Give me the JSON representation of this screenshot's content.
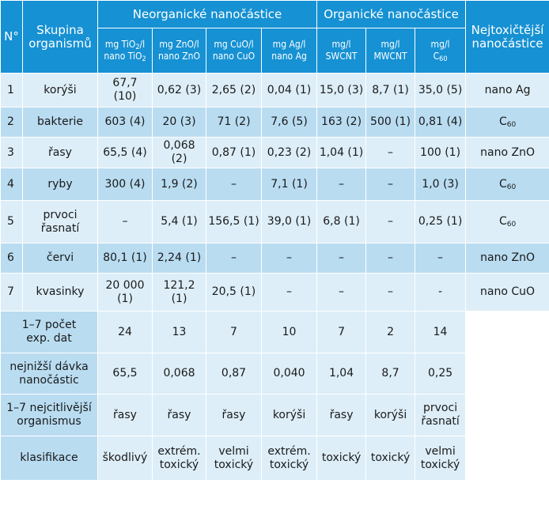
{
  "header": {
    "no": "N°",
    "group": "Skupina organismů",
    "inorganic": "Neorganické nanočástice",
    "organic": "Organické nanočástice",
    "most_toxic": "Nejtoxičtější nanočástice",
    "units": [
      {
        "a": "mg TiO",
        "sub": "2",
        "b": "/l",
        "c": "nano TiO",
        "csub": "2"
      },
      {
        "a": "mg ZnO/l",
        "c": "nano ZnO"
      },
      {
        "a": "mg CuO/l",
        "c": "nano CuO"
      },
      {
        "a": "mg Ag/l",
        "c": "nano Ag"
      },
      {
        "a": "mg/l",
        "c": "SWCNT"
      },
      {
        "a": "mg/l",
        "c": "MWCNT"
      },
      {
        "a": "mg/l",
        "c": "C",
        "csub": "60"
      }
    ]
  },
  "rows": [
    {
      "n": "1",
      "org": "korýši",
      "v": [
        "67,7 (10)",
        "0,62 (3)",
        "2,65 (2)",
        "0,04 (1)",
        "15,0 (3)",
        "8,7 (1)",
        "35,0 (5)"
      ],
      "top": "nano Ag"
    },
    {
      "n": "2",
      "org": "bakterie",
      "v": [
        "603 (4)",
        "20 (3)",
        "71 (2)",
        "7,6 (5)",
        "163 (2)",
        "500 (1)",
        "0,81 (4)"
      ],
      "top": "C",
      "topsub": "60"
    },
    {
      "n": "3",
      "org": "řasy",
      "v": [
        "65,5 (4)",
        "0,068 (2)",
        "0,87 (1)",
        "0,23 (2)",
        "1,04 (1)",
        "–",
        "100 (1)"
      ],
      "top": "nano ZnO"
    },
    {
      "n": "4",
      "org": "ryby",
      "v": [
        "300 (4)",
        "1,9 (2)",
        "–",
        "7,1 (1)",
        "–",
        "–",
        "1,0 (3)"
      ],
      "top": "C",
      "topsub": "60"
    },
    {
      "n": "5",
      "org1": "prvoci",
      "org2": "řasnatí",
      "v": [
        "–",
        "5,4 (1)",
        "156,5 (1)",
        "39,0 (1)",
        "6,8 (1)",
        "–",
        "0,25 (1)"
      ],
      "top": "C",
      "topsub": "60"
    },
    {
      "n": "6",
      "org": "červi",
      "v": [
        "80,1 (1)",
        "2,24 (1)",
        "–",
        "–",
        "–",
        "–",
        "–"
      ],
      "top": "nano ZnO"
    },
    {
      "n": "7",
      "org": "kvasinky",
      "v1": "20 000",
      "v1b": "(1)",
      "v": [
        "",
        "121,2 (1)",
        "20,5 (1)",
        "–",
        "–",
        "–",
        "-"
      ],
      "top": "nano CuO"
    }
  ],
  "summary": [
    {
      "l1": "1–7 počet",
      "l2": "exp. dat",
      "v": [
        "24",
        "13",
        "7",
        "10",
        "7",
        "2",
        "14"
      ]
    },
    {
      "l1": "nejnižší dávka",
      "l2": "nanočástic",
      "v": [
        "65,5",
        "0,068",
        "0,87",
        "0,040",
        "1,04",
        "8,7",
        "0,25"
      ]
    },
    {
      "l1": "1–7 nejcitlivější",
      "l2": "organismus",
      "v": [
        "řasy",
        "řasy",
        "řasy",
        "korýši",
        "řasy",
        "korýši",
        "prvoci|řasnatí"
      ]
    },
    {
      "l1": "klasifikace",
      "v": [
        "škodlivý",
        "extrém.|toxický",
        "velmi|toxický",
        "extrém.|toxický",
        "toxický",
        "toxický",
        "velmi|toxický"
      ]
    }
  ]
}
